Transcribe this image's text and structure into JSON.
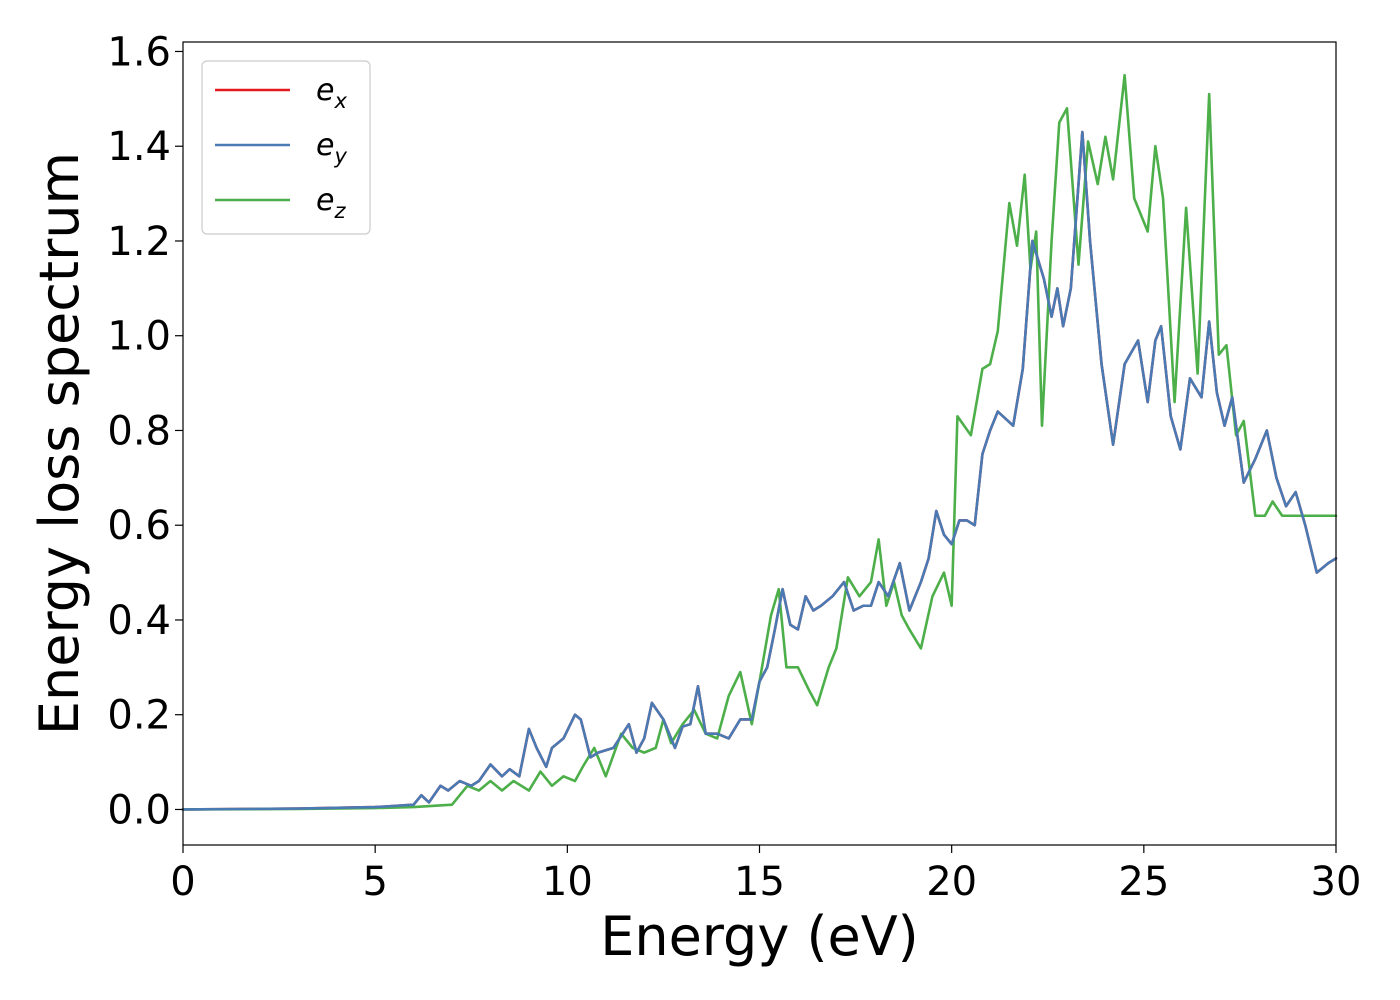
{
  "chart_data": {
    "type": "line",
    "xlabel": "Energy (eV)",
    "ylabel": "Energy loss spectrum",
    "xlim": [
      0,
      30
    ],
    "ylim": [
      -0.075,
      1.62
    ],
    "xticks": [
      0,
      5,
      10,
      15,
      20,
      25,
      30
    ],
    "xtick_labels": [
      "0",
      "5",
      "10",
      "15",
      "20",
      "25",
      "30"
    ],
    "yticks": [
      0.0,
      0.2,
      0.4,
      0.6,
      0.8,
      1.0,
      1.2,
      1.4,
      1.6
    ],
    "ytick_labels": [
      "0.0",
      "0.2",
      "0.4",
      "0.6",
      "0.8",
      "1.0",
      "1.2",
      "1.4",
      "1.6"
    ],
    "grid": false,
    "legend_position": "top-left",
    "series": [
      {
        "name": "e",
        "subscript": "x",
        "color": "#e41a1c",
        "x": [
          0,
          3,
          5,
          6,
          6.2,
          6.4,
          6.7,
          6.9,
          7.2,
          7.5,
          7.7,
          8,
          8.3,
          8.5,
          8.75,
          9,
          9.2,
          9.45,
          9.6,
          9.9,
          10.2,
          10.35,
          10.6,
          10.8,
          11.2,
          11.6,
          11.8,
          12,
          12.2,
          12.5,
          12.8,
          13,
          13.2,
          13.4,
          13.6,
          13.9,
          14.2,
          14.5,
          14.8,
          15,
          15.2,
          15.4,
          15.6,
          15.8,
          16,
          16.2,
          16.4,
          16.6,
          16.9,
          17.2,
          17.45,
          17.7,
          17.9,
          18.1,
          18.35,
          18.65,
          18.9,
          19.2,
          19.4,
          19.6,
          19.8,
          20,
          20.2,
          20.4,
          20.6,
          20.8,
          21,
          21.2,
          21.6,
          21.85,
          22.1,
          22.4,
          22.6,
          22.75,
          22.9,
          23.1,
          23.4,
          23.6,
          23.9,
          24.2,
          24.5,
          24.85,
          25.1,
          25.3,
          25.45,
          25.7,
          25.95,
          26.2,
          26.5,
          26.7,
          26.9,
          27.1,
          27.3,
          27.6,
          27.9,
          28.2,
          28.45,
          28.7,
          28.95,
          29.2,
          29.5,
          29.8,
          30
        ],
        "y": [
          0,
          0.002,
          0.005,
          0.01,
          0.03,
          0.015,
          0.05,
          0.04,
          0.06,
          0.05,
          0.06,
          0.095,
          0.07,
          0.085,
          0.07,
          0.17,
          0.13,
          0.09,
          0.13,
          0.15,
          0.2,
          0.19,
          0.11,
          0.12,
          0.13,
          0.18,
          0.12,
          0.15,
          0.225,
          0.19,
          0.13,
          0.175,
          0.18,
          0.26,
          0.16,
          0.16,
          0.15,
          0.19,
          0.19,
          0.27,
          0.3,
          0.38,
          0.465,
          0.39,
          0.38,
          0.45,
          0.42,
          0.43,
          0.45,
          0.48,
          0.42,
          0.43,
          0.43,
          0.48,
          0.45,
          0.52,
          0.42,
          0.48,
          0.53,
          0.63,
          0.58,
          0.56,
          0.61,
          0.61,
          0.6,
          0.75,
          0.8,
          0.84,
          0.81,
          0.93,
          1.2,
          1.12,
          1.04,
          1.1,
          1.02,
          1.1,
          1.43,
          1.2,
          0.94,
          0.77,
          0.94,
          0.99,
          0.86,
          0.99,
          1.02,
          0.83,
          0.76,
          0.91,
          0.87,
          1.03,
          0.88,
          0.81,
          0.87,
          0.69,
          0.74,
          0.8,
          0.7,
          0.64,
          0.67,
          0.6,
          0.5,
          0.52,
          0.53
        ]
      },
      {
        "name": "e",
        "subscript": "y",
        "color": "#4a7ab3",
        "x": [
          0,
          3,
          5,
          6,
          6.2,
          6.4,
          6.7,
          6.9,
          7.2,
          7.5,
          7.7,
          8,
          8.3,
          8.5,
          8.75,
          9,
          9.2,
          9.45,
          9.6,
          9.9,
          10.2,
          10.35,
          10.6,
          10.8,
          11.2,
          11.6,
          11.8,
          12,
          12.2,
          12.5,
          12.8,
          13,
          13.2,
          13.4,
          13.6,
          13.9,
          14.2,
          14.5,
          14.8,
          15,
          15.2,
          15.4,
          15.6,
          15.8,
          16,
          16.2,
          16.4,
          16.6,
          16.9,
          17.2,
          17.45,
          17.7,
          17.9,
          18.1,
          18.35,
          18.65,
          18.9,
          19.2,
          19.4,
          19.6,
          19.8,
          20,
          20.2,
          20.4,
          20.6,
          20.8,
          21,
          21.2,
          21.6,
          21.85,
          22.1,
          22.4,
          22.6,
          22.75,
          22.9,
          23.1,
          23.4,
          23.6,
          23.9,
          24.2,
          24.5,
          24.85,
          25.1,
          25.3,
          25.45,
          25.7,
          25.95,
          26.2,
          26.5,
          26.7,
          26.9,
          27.1,
          27.3,
          27.6,
          27.9,
          28.2,
          28.45,
          28.7,
          28.95,
          29.2,
          29.5,
          29.8,
          30
        ],
        "y": [
          0,
          0.002,
          0.005,
          0.01,
          0.03,
          0.015,
          0.05,
          0.04,
          0.06,
          0.05,
          0.06,
          0.095,
          0.07,
          0.085,
          0.07,
          0.17,
          0.13,
          0.09,
          0.13,
          0.15,
          0.2,
          0.19,
          0.11,
          0.12,
          0.13,
          0.18,
          0.12,
          0.15,
          0.225,
          0.19,
          0.13,
          0.175,
          0.18,
          0.26,
          0.16,
          0.16,
          0.15,
          0.19,
          0.19,
          0.27,
          0.3,
          0.38,
          0.465,
          0.39,
          0.38,
          0.45,
          0.42,
          0.43,
          0.45,
          0.48,
          0.42,
          0.43,
          0.43,
          0.48,
          0.45,
          0.52,
          0.42,
          0.48,
          0.53,
          0.63,
          0.58,
          0.56,
          0.61,
          0.61,
          0.6,
          0.75,
          0.8,
          0.84,
          0.81,
          0.93,
          1.2,
          1.12,
          1.04,
          1.1,
          1.02,
          1.1,
          1.43,
          1.2,
          0.94,
          0.77,
          0.94,
          0.99,
          0.86,
          0.99,
          1.02,
          0.83,
          0.76,
          0.91,
          0.87,
          1.03,
          0.88,
          0.81,
          0.87,
          0.69,
          0.74,
          0.8,
          0.7,
          0.64,
          0.67,
          0.6,
          0.5,
          0.52,
          0.53
        ]
      },
      {
        "name": "e",
        "subscript": "z",
        "color": "#4daf4a",
        "x": [
          0,
          3,
          5,
          6,
          7,
          7.4,
          7.7,
          8,
          8.3,
          8.6,
          9,
          9.3,
          9.6,
          9.9,
          10.2,
          10.4,
          10.7,
          11,
          11.4,
          11.7,
          12,
          12.3,
          12.5,
          12.7,
          13,
          13.3,
          13.6,
          13.9,
          14.2,
          14.5,
          14.8,
          15,
          15.3,
          15.5,
          15.7,
          16,
          16.3,
          16.5,
          16.8,
          17,
          17.3,
          17.6,
          17.9,
          18.1,
          18.3,
          18.5,
          18.7,
          18.9,
          19.2,
          19.5,
          19.8,
          20,
          20.15,
          20.5,
          20.8,
          21,
          21.2,
          21.5,
          21.7,
          21.9,
          22.05,
          22.2,
          22.35,
          22.6,
          22.8,
          23,
          23.3,
          23.55,
          23.8,
          24,
          24.2,
          24.5,
          24.75,
          24.9,
          25.1,
          25.3,
          25.5,
          25.8,
          26.1,
          26.4,
          26.7,
          26.95,
          27.15,
          27.4,
          27.6,
          27.9,
          28.15,
          28.35,
          28.6,
          28.9,
          29.2,
          29.5,
          29.8,
          30
        ],
        "y": [
          0,
          0.001,
          0.003,
          0.005,
          0.01,
          0.05,
          0.04,
          0.06,
          0.04,
          0.06,
          0.04,
          0.08,
          0.05,
          0.07,
          0.06,
          0.09,
          0.13,
          0.07,
          0.16,
          0.13,
          0.12,
          0.13,
          0.19,
          0.14,
          0.18,
          0.21,
          0.16,
          0.15,
          0.24,
          0.29,
          0.18,
          0.27,
          0.41,
          0.465,
          0.3,
          0.3,
          0.25,
          0.22,
          0.3,
          0.34,
          0.49,
          0.45,
          0.48,
          0.57,
          0.43,
          0.48,
          0.41,
          0.38,
          0.34,
          0.45,
          0.5,
          0.43,
          0.83,
          0.79,
          0.93,
          0.94,
          1.01,
          1.28,
          1.19,
          1.34,
          1.14,
          1.22,
          0.81,
          1.2,
          1.45,
          1.48,
          1.15,
          1.41,
          1.32,
          1.42,
          1.33,
          1.55,
          1.29,
          1.26,
          1.22,
          1.4,
          1.29,
          0.86,
          1.27,
          0.92,
          1.51,
          0.96,
          0.98,
          0.79,
          0.82,
          0.62,
          0.62,
          0.65,
          0.62,
          0.62,
          0.62,
          0.62,
          0.62,
          0.62
        ]
      }
    ]
  }
}
